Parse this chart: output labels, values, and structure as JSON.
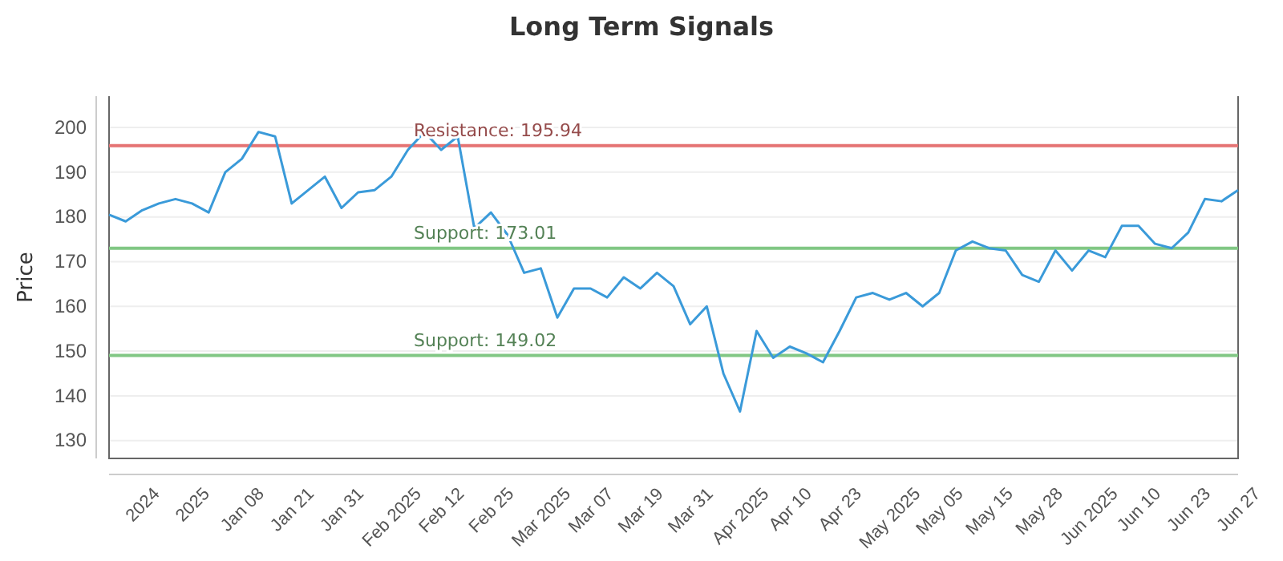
{
  "chart_data": {
    "type": "line",
    "title": "Long Term Signals",
    "ylabel": "Price",
    "categories": [
      null,
      null,
      "2024",
      null,
      null,
      "2025",
      null,
      null,
      "Jan 08",
      null,
      null,
      "Jan 21",
      null,
      null,
      "Jan 31",
      null,
      null,
      "Feb 2025",
      null,
      null,
      "Feb 12",
      null,
      null,
      "Feb 25",
      null,
      null,
      "Mar 2025",
      null,
      null,
      "Mar 07",
      null,
      null,
      "Mar 19",
      null,
      null,
      "Mar 31",
      null,
      null,
      "Apr 2025",
      null,
      null,
      "Apr 10",
      null,
      null,
      "Apr 23",
      null,
      null,
      "May 2025",
      null,
      null,
      "May 05",
      null,
      null,
      "May 15",
      null,
      null,
      "May 28",
      null,
      null,
      "Jun 2025",
      null,
      null,
      "Jun 10",
      null,
      null,
      "Jun 23",
      null,
      null,
      "Jun 27"
    ],
    "series": [
      {
        "color": "#3a9ad9",
        "values": [
          180.5,
          179,
          181.5,
          183,
          184,
          183,
          181,
          190,
          193,
          199,
          198,
          183,
          186,
          189,
          182,
          185.5,
          186,
          189,
          195,
          199,
          195,
          198,
          177.5,
          181,
          176,
          167.5,
          168.5,
          157.5,
          164,
          164,
          162,
          166.5,
          164,
          167.5,
          164.5,
          156,
          160,
          145,
          136.5,
          154.5,
          148.5,
          151,
          149.5,
          147.5,
          154.5,
          162,
          163,
          161.5,
          163,
          160,
          163,
          172.5,
          174.5,
          173,
          172.5,
          167,
          165.5,
          172.5,
          168,
          172.5,
          171,
          178,
          178,
          174,
          173,
          176.5,
          184,
          183.5,
          186
        ]
      }
    ],
    "ylim": [
      126,
      207
    ],
    "yticks": [
      130,
      140,
      150,
      160,
      170,
      180,
      190,
      200
    ],
    "grid": "y",
    "marker": "none",
    "line_style": "solid",
    "ref_lines": [
      {
        "axis": "y",
        "value": 195.94,
        "label": "Resistance: 195.94",
        "color": "#e57373"
      },
      {
        "axis": "y",
        "value": 173.01,
        "label": "Support: 173.01",
        "color": "#81c784"
      },
      {
        "axis": "y",
        "value": 149.02,
        "label": "Support: 149.02",
        "color": "#81c784"
      }
    ]
  }
}
